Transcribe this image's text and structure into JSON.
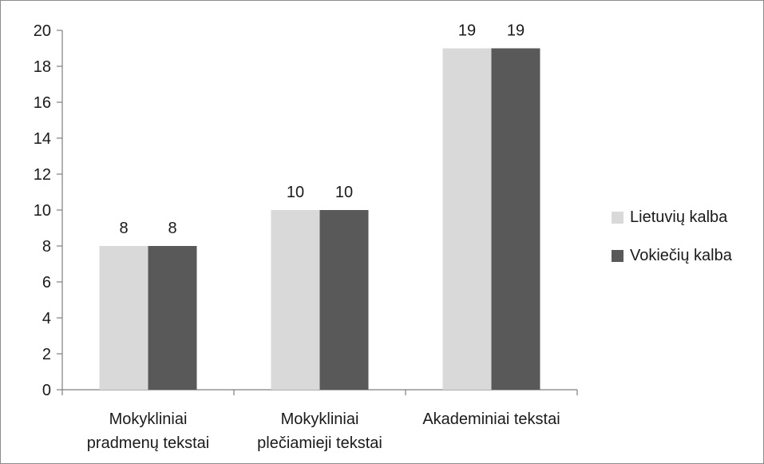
{
  "chart_data": {
    "type": "bar",
    "title": "",
    "xlabel": "",
    "ylabel": "",
    "categories": [
      [
        "Mokykliniai",
        "pradmenų tekstai"
      ],
      [
        "Mokykliniai",
        "plečiamieji tekstai"
      ],
      [
        "Akademiniai tekstai"
      ]
    ],
    "series": [
      {
        "name": "Lietuvių kalba",
        "color": "#d9d9d9",
        "values": [
          8,
          10,
          19
        ]
      },
      {
        "name": "Vokiečių kalba",
        "color": "#595959",
        "values": [
          8,
          10,
          19
        ]
      }
    ],
    "ylim": [
      0,
      20
    ],
    "yticks": [
      "0",
      "2",
      "4",
      "6",
      "8",
      "10",
      "12",
      "14",
      "16",
      "18",
      "20"
    ],
    "grid": false,
    "data_labels": true,
    "legend_position": "right"
  }
}
